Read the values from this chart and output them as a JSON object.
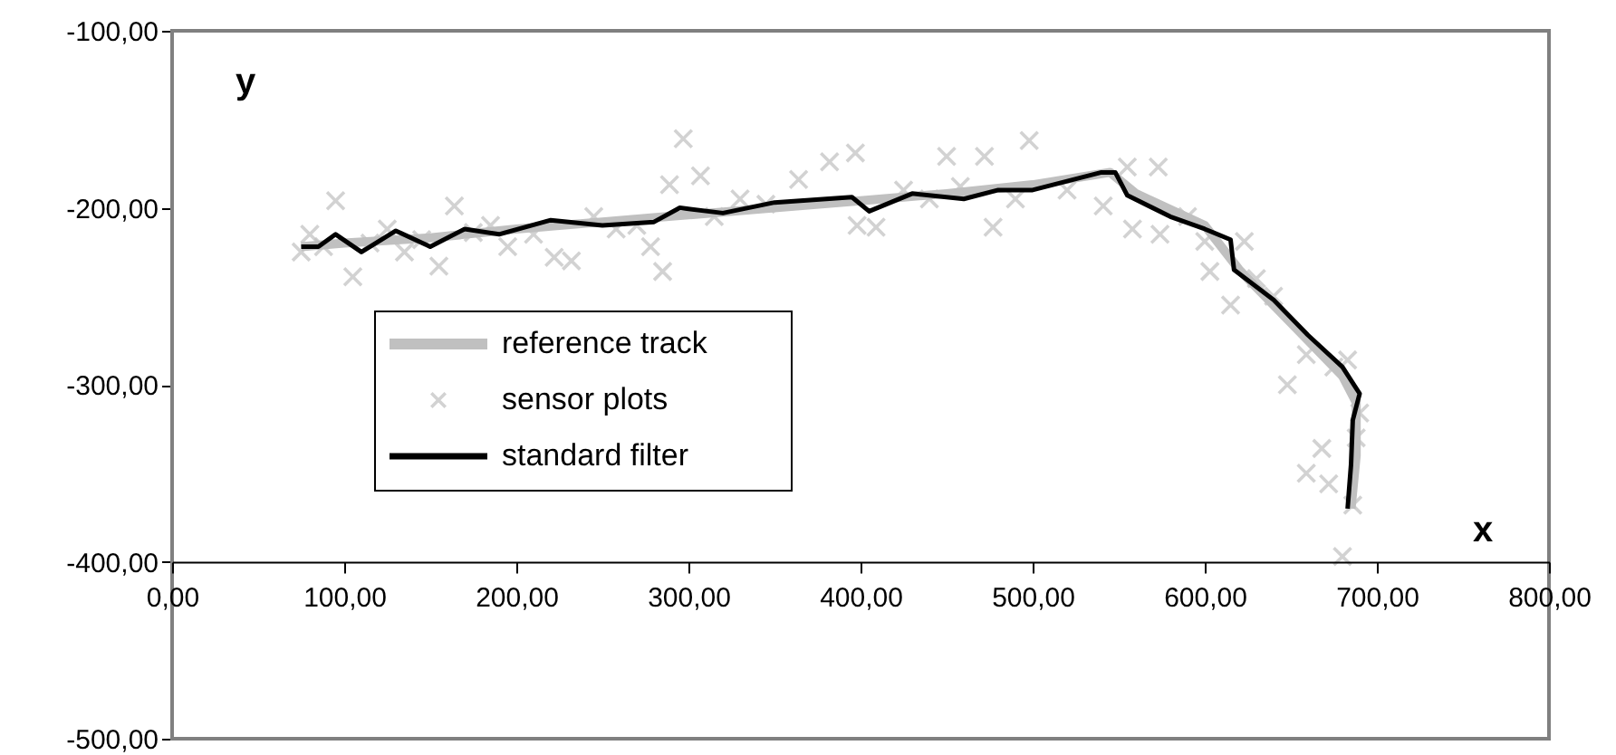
{
  "chart_data": {
    "type": "line",
    "xlabel": "x",
    "ylabel": "y",
    "xlim": [
      0,
      800
    ],
    "ylim": [
      -500,
      -100
    ],
    "xticks": [
      {
        "value": 0,
        "label": "0,00"
      },
      {
        "value": 100,
        "label": "100,00"
      },
      {
        "value": 200,
        "label": "200,00"
      },
      {
        "value": 300,
        "label": "300,00"
      },
      {
        "value": 400,
        "label": "400,00"
      },
      {
        "value": 500,
        "label": "500,00"
      },
      {
        "value": 600,
        "label": "600,00"
      },
      {
        "value": 700,
        "label": "700,00"
      },
      {
        "value": 800,
        "label": "800,00"
      }
    ],
    "yticks": [
      {
        "value": -500,
        "label": "-500,00"
      },
      {
        "value": -400,
        "label": "-400,00"
      },
      {
        "value": -300,
        "label": "-300,00"
      },
      {
        "value": -200,
        "label": "-200,00"
      },
      {
        "value": -100,
        "label": "-100,00"
      }
    ],
    "grid": false,
    "legend": "left",
    "series": [
      {
        "name": "reference track",
        "color": "#c0c0c0",
        "x": [
          75,
          100,
          150,
          200,
          250,
          300,
          350,
          400,
          450,
          500,
          545,
          560,
          600,
          620,
          640,
          660,
          680,
          688,
          688,
          685
        ],
        "values": [
          -222,
          -220,
          -217,
          -212,
          -208,
          -204,
          -200,
          -196,
          -192,
          -187,
          -180,
          -192,
          -210,
          -235,
          -255,
          -275,
          -295,
          -310,
          -340,
          -370
        ]
      },
      {
        "name": "sensor plots",
        "type": "scatter",
        "marker": "cross",
        "color": "#c0c0c0",
        "x": [
          75,
          80,
          88,
          95,
          105,
          115,
          125,
          135,
          145,
          155,
          164,
          175,
          185,
          195,
          210,
          222,
          232,
          245,
          258,
          270,
          278,
          285,
          289,
          297,
          307,
          315,
          330,
          345,
          364,
          382,
          397,
          398,
          409,
          425,
          440,
          450,
          458,
          472,
          477,
          490,
          498,
          520,
          541,
          555,
          558,
          573,
          574,
          590,
          600,
          603,
          615,
          623,
          630,
          640,
          648,
          659,
          659,
          668,
          672,
          680,
          683,
          686,
          690,
          688,
          675
        ],
        "values": [
          -225,
          -215,
          -222,
          -196,
          -239,
          -220,
          -212,
          -225,
          -218,
          -233,
          -199,
          -214,
          -210,
          -222,
          -215,
          -228,
          -230,
          -205,
          -212,
          -210,
          -222,
          -236,
          -187,
          -161,
          -182,
          -205,
          -195,
          -198,
          -184,
          -174,
          -169,
          -210,
          -211,
          -190,
          -195,
          -171,
          -188,
          -171,
          -211,
          -195,
          -162,
          -190,
          -199,
          -177,
          -212,
          -177,
          -215,
          -205,
          -219,
          -236,
          -255,
          -219,
          -240,
          -250,
          -300,
          -283,
          -350,
          -336,
          -356,
          -397,
          -286,
          -368,
          -316,
          -330,
          -290
        ]
      },
      {
        "name": "standard filter",
        "color": "#000000",
        "x": [
          75,
          85,
          95,
          110,
          130,
          150,
          170,
          190,
          220,
          250,
          280,
          295,
          320,
          350,
          395,
          405,
          430,
          460,
          480,
          500,
          540,
          548,
          555,
          580,
          600,
          615,
          617,
          640,
          660,
          680,
          690,
          686,
          685,
          683
        ],
        "values": [
          -222,
          -222,
          -215,
          -225,
          -213,
          -222,
          -212,
          -215,
          -207,
          -210,
          -208,
          -200,
          -203,
          -197,
          -194,
          -202,
          -192,
          -195,
          -190,
          -190,
          -180,
          -180,
          -193,
          -205,
          -212,
          -218,
          -235,
          -252,
          -272,
          -290,
          -305,
          -320,
          -345,
          -370
        ]
      }
    ]
  }
}
